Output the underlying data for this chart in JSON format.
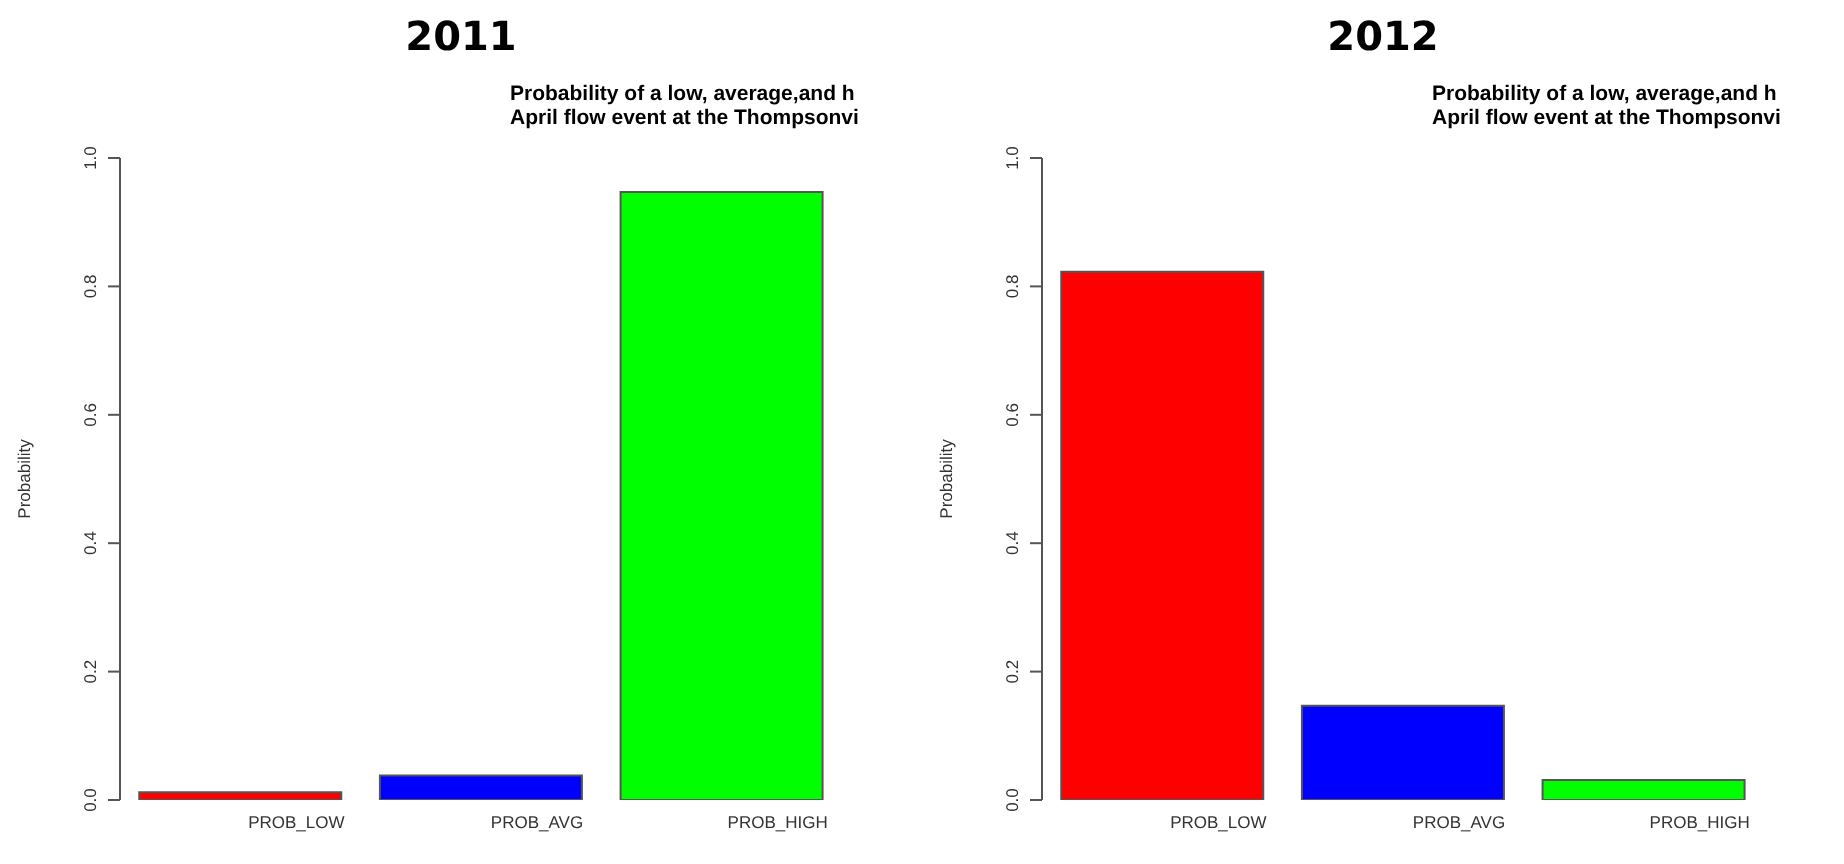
{
  "chart_data": [
    {
      "type": "bar",
      "title": "2011",
      "subtitle": "Probability of a low, average,and h\nApril flow event at the Thompsonvi",
      "ylabel": "Probability",
      "categories": [
        "PROB_LOW",
        "PROB_AVG",
        "PROB_HIGH"
      ],
      "values": [
        0.012,
        0.038,
        0.947
      ],
      "colors": [
        "#ff0000",
        "#0000ff",
        "#00ff00"
      ],
      "ylim": [
        0,
        1
      ],
      "yticks": [
        {
          "value": 0,
          "label": "0.0"
        },
        {
          "value": 0.2,
          "label": "0.2"
        },
        {
          "value": 0.4,
          "label": "0.4"
        },
        {
          "value": 0.6,
          "label": "0.6"
        },
        {
          "value": 0.8,
          "label": "0.8"
        },
        {
          "value": 1,
          "label": "1.0"
        }
      ],
      "grid": false,
      "legend": false
    },
    {
      "type": "bar",
      "title": "2012",
      "subtitle": "Probability of a low, average,and h\nApril flow event at the Thompsonvi",
      "ylabel": "Probability",
      "categories": [
        "PROB_LOW",
        "PROB_AVG",
        "PROB_HIGH"
      ],
      "values": [
        0.823,
        0.147,
        0.031
      ],
      "colors": [
        "#ff0000",
        "#0000ff",
        "#00ff00"
      ],
      "ylim": [
        0,
        1
      ],
      "yticks": [
        {
          "value": 0,
          "label": "0.0"
        },
        {
          "value": 0.2,
          "label": "0.2"
        },
        {
          "value": 0.4,
          "label": "0.4"
        },
        {
          "value": 0.6,
          "label": "0.6"
        },
        {
          "value": 0.8,
          "label": "0.8"
        },
        {
          "value": 1,
          "label": "1.0"
        }
      ],
      "grid": false,
      "legend": false
    }
  ]
}
